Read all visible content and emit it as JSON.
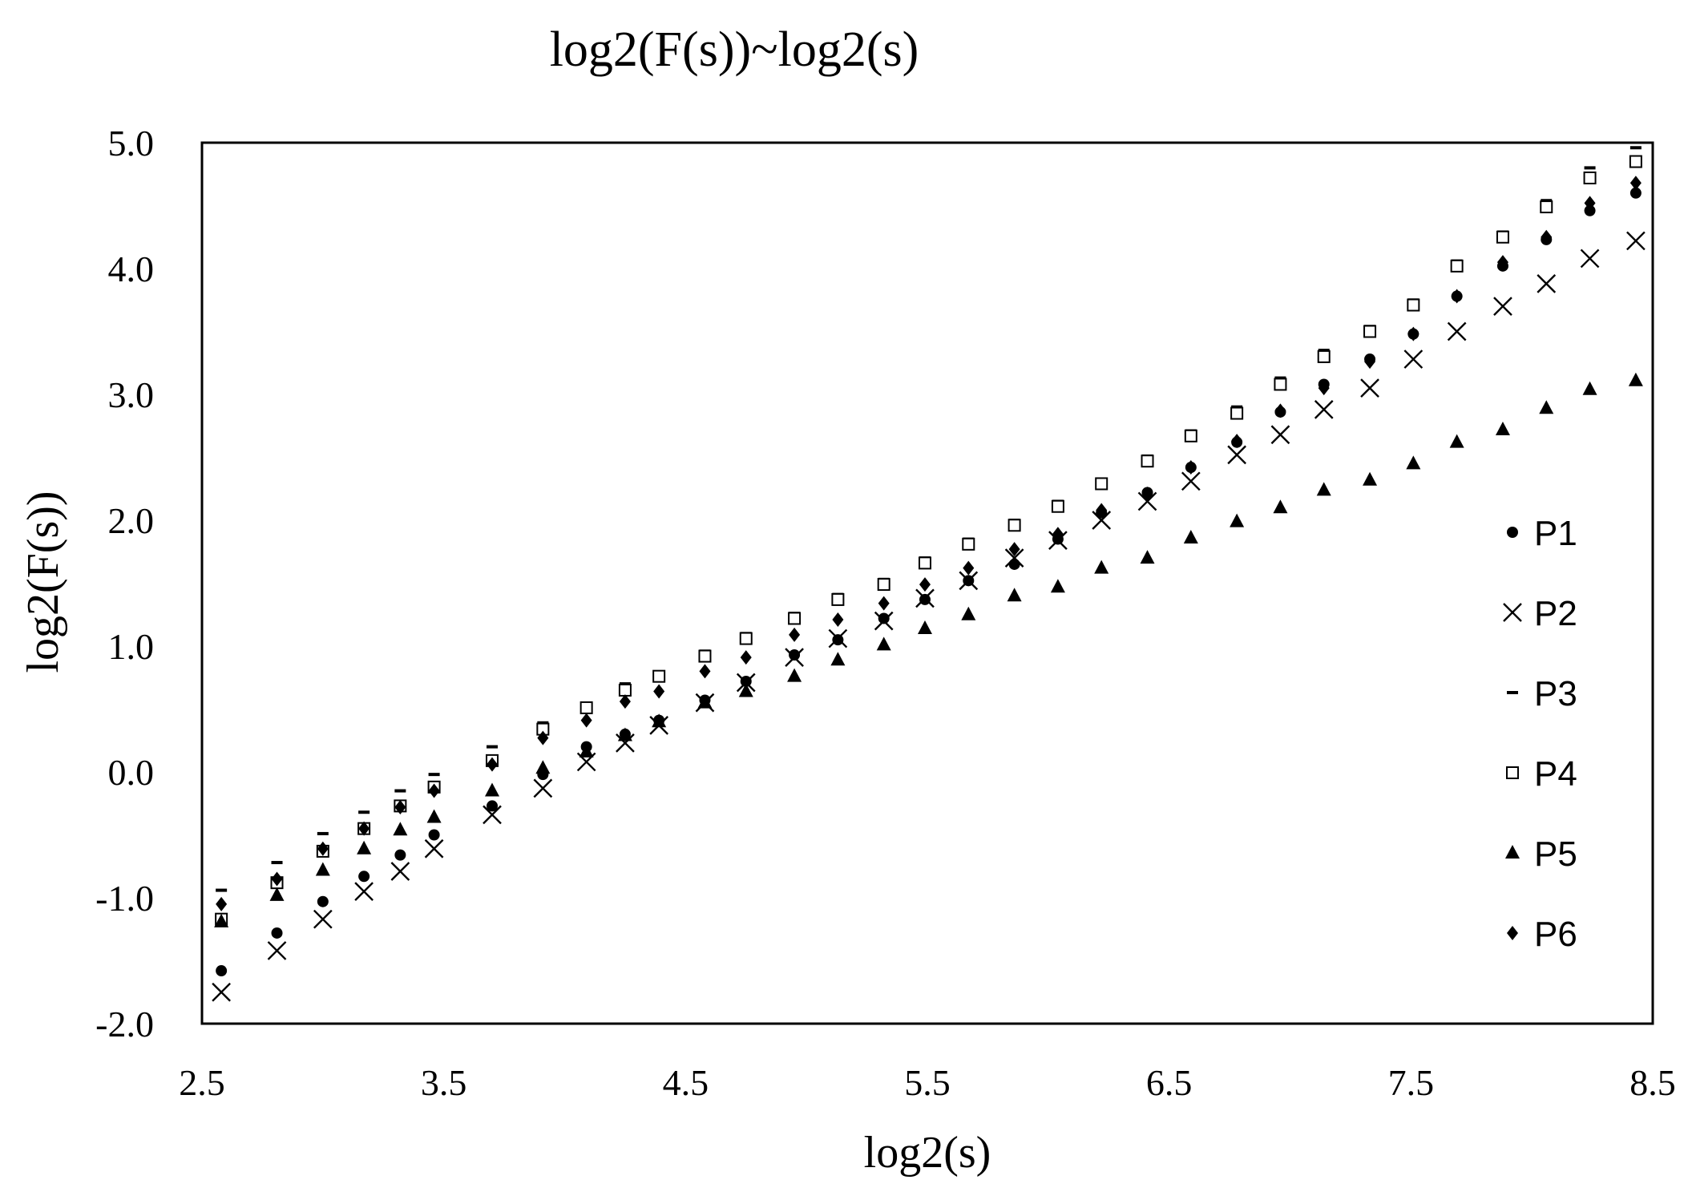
{
  "chart_data": {
    "type": "scatter",
    "title": "log2(F(s))~log2(s)",
    "xlabel": "log2(s)",
    "ylabel": "log2(F(s))",
    "xlim": [
      2.5,
      8.5
    ],
    "ylim": [
      -2.0,
      5.0
    ],
    "xticks": [
      "2.5",
      "3.5",
      "4.5",
      "5.5",
      "6.5",
      "7.5",
      "8.5"
    ],
    "yticks": [
      "5.0",
      "4.0",
      "3.0",
      "2.0",
      "1.0",
      "0.0",
      "-1.0",
      "-2.0"
    ],
    "grid": false,
    "legend_position": "right",
    "x": [
      2.58,
      2.81,
      3.0,
      3.17,
      3.32,
      3.46,
      3.7,
      3.91,
      4.09,
      4.25,
      4.39,
      4.58,
      4.75,
      4.95,
      5.13,
      5.32,
      5.49,
      5.67,
      5.86,
      6.04,
      6.22,
      6.41,
      6.59,
      6.78,
      6.96,
      7.14,
      7.33,
      7.51,
      7.69,
      7.88,
      8.06,
      8.24,
      8.43
    ],
    "series": [
      {
        "name": "P1",
        "marker": "circle",
        "values": [
          -1.58,
          -1.28,
          -1.03,
          -0.83,
          -0.66,
          -0.5,
          -0.27,
          -0.02,
          0.2,
          0.3,
          0.41,
          0.57,
          0.72,
          0.93,
          1.05,
          1.22,
          1.37,
          1.52,
          1.65,
          1.85,
          2.06,
          2.22,
          2.42,
          2.62,
          2.86,
          3.08,
          3.28,
          3.48,
          3.78,
          4.02,
          4.23,
          4.46,
          4.6
        ]
      },
      {
        "name": "P2",
        "marker": "x",
        "values": [
          -1.75,
          -1.42,
          -1.17,
          -0.95,
          -0.79,
          -0.61,
          -0.34,
          -0.13,
          0.08,
          0.23,
          0.37,
          0.55,
          0.71,
          0.91,
          1.06,
          1.2,
          1.38,
          1.52,
          1.7,
          1.84,
          2.0,
          2.15,
          2.31,
          2.52,
          2.68,
          2.88,
          3.05,
          3.28,
          3.5,
          3.7,
          3.88,
          4.08,
          4.22
        ]
      },
      {
        "name": "P3",
        "marker": "dash",
        "values": [
          -0.94,
          -0.72,
          -0.49,
          -0.32,
          -0.15,
          -0.02,
          0.2,
          0.39,
          0.54,
          0.7,
          0.79,
          0.96,
          1.1,
          1.26,
          1.41,
          1.53,
          1.7,
          1.85,
          2.0,
          2.15,
          2.32,
          2.51,
          2.71,
          2.9,
          3.13,
          3.35,
          3.54,
          3.75,
          4.06,
          4.29,
          4.54,
          4.8,
          4.96
        ]
      },
      {
        "name": "P4",
        "marker": "square",
        "values": [
          -1.17,
          -0.88,
          -0.63,
          -0.45,
          -0.27,
          -0.12,
          0.09,
          0.34,
          0.51,
          0.65,
          0.76,
          0.92,
          1.06,
          1.22,
          1.37,
          1.49,
          1.66,
          1.81,
          1.96,
          2.11,
          2.29,
          2.47,
          2.67,
          2.85,
          3.08,
          3.3,
          3.5,
          3.71,
          4.02,
          4.25,
          4.49,
          4.72,
          4.85
        ]
      },
      {
        "name": "P5",
        "marker": "triangle",
        "values": [
          -1.19,
          -0.98,
          -0.78,
          -0.61,
          -0.46,
          -0.36,
          -0.15,
          0.03,
          0.16,
          0.29,
          0.4,
          0.55,
          0.64,
          0.76,
          0.89,
          1.01,
          1.14,
          1.25,
          1.4,
          1.47,
          1.62,
          1.7,
          1.86,
          1.99,
          2.1,
          2.24,
          2.32,
          2.45,
          2.62,
          2.72,
          2.89,
          3.04,
          3.11
        ]
      },
      {
        "name": "P6",
        "marker": "diamond",
        "values": [
          -1.05,
          -0.85,
          -0.61,
          -0.45,
          -0.28,
          -0.15,
          0.06,
          0.27,
          0.41,
          0.56,
          0.64,
          0.8,
          0.91,
          1.09,
          1.21,
          1.34,
          1.49,
          1.62,
          1.77,
          1.89,
          2.08,
          2.21,
          2.42,
          2.63,
          2.87,
          3.05,
          3.26,
          3.48,
          3.78,
          4.05,
          4.25,
          4.52,
          4.68
        ]
      }
    ]
  }
}
